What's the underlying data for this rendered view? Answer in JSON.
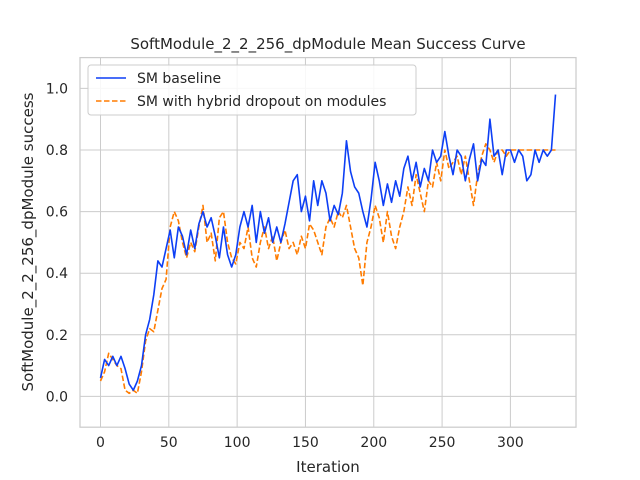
{
  "chart_data": {
    "type": "line",
    "title": "SoftModule_2_2_256_dpModule Mean Success Curve",
    "xlabel": "Iteration",
    "ylabel": "SoftModule_2_2_256_dpModule success",
    "xlim": [
      -15,
      348
    ],
    "ylim": [
      -0.1,
      1.1
    ],
    "xticks": [
      0,
      50,
      100,
      150,
      200,
      250,
      300
    ],
    "yticks": [
      0.0,
      0.2,
      0.4,
      0.6,
      0.8,
      1.0
    ],
    "xtick_labels": [
      "0",
      "50",
      "100",
      "150",
      "200",
      "250",
      "300"
    ],
    "ytick_labels": [
      "0.0",
      "0.2",
      "0.4",
      "0.6",
      "0.8",
      "1.0"
    ],
    "grid": true,
    "legend_position": "top-left",
    "series": [
      {
        "name": "SM baseline",
        "color": "#0d3ff5",
        "style": "solid",
        "points": [
          [
            0,
            0.06
          ],
          [
            3,
            0.12
          ],
          [
            6,
            0.1
          ],
          [
            9,
            0.13
          ],
          [
            12,
            0.1
          ],
          [
            15,
            0.13
          ],
          [
            18,
            0.09
          ],
          [
            21,
            0.04
          ],
          [
            24,
            0.02
          ],
          [
            27,
            0.05
          ],
          [
            30,
            0.1
          ],
          [
            33,
            0.2
          ],
          [
            36,
            0.25
          ],
          [
            39,
            0.33
          ],
          [
            42,
            0.44
          ],
          [
            45,
            0.42
          ],
          [
            48,
            0.48
          ],
          [
            51,
            0.54
          ],
          [
            54,
            0.45
          ],
          [
            57,
            0.55
          ],
          [
            60,
            0.52
          ],
          [
            63,
            0.46
          ],
          [
            66,
            0.54
          ],
          [
            69,
            0.48
          ],
          [
            72,
            0.56
          ],
          [
            75,
            0.6
          ],
          [
            78,
            0.55
          ],
          [
            81,
            0.58
          ],
          [
            84,
            0.52
          ],
          [
            87,
            0.45
          ],
          [
            90,
            0.55
          ],
          [
            93,
            0.46
          ],
          [
            96,
            0.42
          ],
          [
            99,
            0.46
          ],
          [
            102,
            0.55
          ],
          [
            105,
            0.6
          ],
          [
            108,
            0.55
          ],
          [
            111,
            0.62
          ],
          [
            114,
            0.5
          ],
          [
            117,
            0.6
          ],
          [
            120,
            0.53
          ],
          [
            123,
            0.58
          ],
          [
            126,
            0.5
          ],
          [
            129,
            0.55
          ],
          [
            132,
            0.5
          ],
          [
            135,
            0.56
          ],
          [
            138,
            0.63
          ],
          [
            141,
            0.7
          ],
          [
            144,
            0.72
          ],
          [
            147,
            0.6
          ],
          [
            150,
            0.65
          ],
          [
            153,
            0.57
          ],
          [
            156,
            0.7
          ],
          [
            159,
            0.62
          ],
          [
            162,
            0.7
          ],
          [
            165,
            0.66
          ],
          [
            168,
            0.57
          ],
          [
            171,
            0.62
          ],
          [
            174,
            0.59
          ],
          [
            177,
            0.66
          ],
          [
            180,
            0.83
          ],
          [
            183,
            0.73
          ],
          [
            186,
            0.68
          ],
          [
            189,
            0.66
          ],
          [
            192,
            0.6
          ],
          [
            195,
            0.55
          ],
          [
            198,
            0.64
          ],
          [
            201,
            0.76
          ],
          [
            204,
            0.7
          ],
          [
            207,
            0.62
          ],
          [
            210,
            0.69
          ],
          [
            213,
            0.63
          ],
          [
            216,
            0.7
          ],
          [
            219,
            0.65
          ],
          [
            222,
            0.74
          ],
          [
            225,
            0.78
          ],
          [
            228,
            0.7
          ],
          [
            231,
            0.76
          ],
          [
            234,
            0.68
          ],
          [
            237,
            0.74
          ],
          [
            240,
            0.7
          ],
          [
            243,
            0.8
          ],
          [
            246,
            0.76
          ],
          [
            249,
            0.78
          ],
          [
            252,
            0.86
          ],
          [
            255,
            0.78
          ],
          [
            258,
            0.72
          ],
          [
            261,
            0.8
          ],
          [
            264,
            0.78
          ],
          [
            267,
            0.7
          ],
          [
            270,
            0.77
          ],
          [
            273,
            0.82
          ],
          [
            276,
            0.7
          ],
          [
            279,
            0.77
          ],
          [
            282,
            0.75
          ],
          [
            285,
            0.9
          ],
          [
            288,
            0.78
          ],
          [
            291,
            0.8
          ],
          [
            294,
            0.72
          ],
          [
            297,
            0.8
          ],
          [
            300,
            0.8
          ],
          [
            303,
            0.76
          ],
          [
            306,
            0.8
          ],
          [
            309,
            0.78
          ],
          [
            312,
            0.7
          ],
          [
            315,
            0.72
          ],
          [
            318,
            0.8
          ],
          [
            321,
            0.76
          ],
          [
            324,
            0.8
          ],
          [
            327,
            0.78
          ],
          [
            330,
            0.8
          ],
          [
            333,
            0.98
          ]
        ]
      },
      {
        "name": "SM with hybrid dropout on modules",
        "color": "#ff7c00",
        "style": "dashed",
        "points": [
          [
            0,
            0.05
          ],
          [
            3,
            0.08
          ],
          [
            6,
            0.14
          ],
          [
            9,
            0.12
          ],
          [
            12,
            0.1
          ],
          [
            15,
            0.09
          ],
          [
            18,
            0.02
          ],
          [
            21,
            0.01
          ],
          [
            24,
            0.02
          ],
          [
            27,
            0.01
          ],
          [
            30,
            0.08
          ],
          [
            33,
            0.18
          ],
          [
            36,
            0.22
          ],
          [
            39,
            0.21
          ],
          [
            42,
            0.28
          ],
          [
            45,
            0.35
          ],
          [
            48,
            0.38
          ],
          [
            51,
            0.55
          ],
          [
            54,
            0.6
          ],
          [
            57,
            0.57
          ],
          [
            60,
            0.5
          ],
          [
            63,
            0.45
          ],
          [
            66,
            0.5
          ],
          [
            69,
            0.47
          ],
          [
            72,
            0.55
          ],
          [
            75,
            0.62
          ],
          [
            78,
            0.5
          ],
          [
            81,
            0.53
          ],
          [
            84,
            0.44
          ],
          [
            87,
            0.58
          ],
          [
            90,
            0.6
          ],
          [
            93,
            0.5
          ],
          [
            96,
            0.45
          ],
          [
            99,
            0.43
          ],
          [
            102,
            0.5
          ],
          [
            105,
            0.48
          ],
          [
            108,
            0.55
          ],
          [
            111,
            0.45
          ],
          [
            114,
            0.42
          ],
          [
            117,
            0.5
          ],
          [
            120,
            0.55
          ],
          [
            123,
            0.48
          ],
          [
            126,
            0.52
          ],
          [
            129,
            0.44
          ],
          [
            132,
            0.5
          ],
          [
            135,
            0.54
          ],
          [
            138,
            0.48
          ],
          [
            141,
            0.5
          ],
          [
            144,
            0.46
          ],
          [
            147,
            0.52
          ],
          [
            150,
            0.48
          ],
          [
            153,
            0.56
          ],
          [
            156,
            0.54
          ],
          [
            159,
            0.5
          ],
          [
            162,
            0.46
          ],
          [
            165,
            0.55
          ],
          [
            168,
            0.58
          ],
          [
            171,
            0.55
          ],
          [
            174,
            0.6
          ],
          [
            177,
            0.58
          ],
          [
            180,
            0.62
          ],
          [
            183,
            0.55
          ],
          [
            186,
            0.48
          ],
          [
            189,
            0.45
          ],
          [
            192,
            0.36
          ],
          [
            195,
            0.5
          ],
          [
            198,
            0.55
          ],
          [
            201,
            0.62
          ],
          [
            204,
            0.58
          ],
          [
            207,
            0.5
          ],
          [
            210,
            0.6
          ],
          [
            213,
            0.52
          ],
          [
            216,
            0.48
          ],
          [
            219,
            0.55
          ],
          [
            222,
            0.6
          ],
          [
            225,
            0.68
          ],
          [
            228,
            0.62
          ],
          [
            231,
            0.72
          ],
          [
            234,
            0.66
          ],
          [
            237,
            0.6
          ],
          [
            240,
            0.7
          ],
          [
            243,
            0.68
          ],
          [
            246,
            0.76
          ],
          [
            249,
            0.7
          ],
          [
            252,
            0.8
          ],
          [
            255,
            0.74
          ],
          [
            258,
            0.76
          ],
          [
            261,
            0.78
          ],
          [
            264,
            0.72
          ],
          [
            267,
            0.78
          ],
          [
            270,
            0.7
          ],
          [
            273,
            0.62
          ],
          [
            276,
            0.72
          ],
          [
            279,
            0.78
          ],
          [
            282,
            0.82
          ],
          [
            285,
            0.8
          ],
          [
            288,
            0.76
          ],
          [
            291,
            0.8
          ],
          [
            294,
            0.8
          ],
          [
            297,
            0.78
          ],
          [
            300,
            0.8
          ],
          [
            303,
            0.8
          ],
          [
            306,
            0.8
          ],
          [
            309,
            0.8
          ],
          [
            312,
            0.8
          ],
          [
            315,
            0.8
          ],
          [
            318,
            0.8
          ],
          [
            321,
            0.8
          ],
          [
            324,
            0.8
          ],
          [
            327,
            0.8
          ],
          [
            330,
            0.8
          ],
          [
            333,
            0.8
          ]
        ]
      }
    ]
  }
}
